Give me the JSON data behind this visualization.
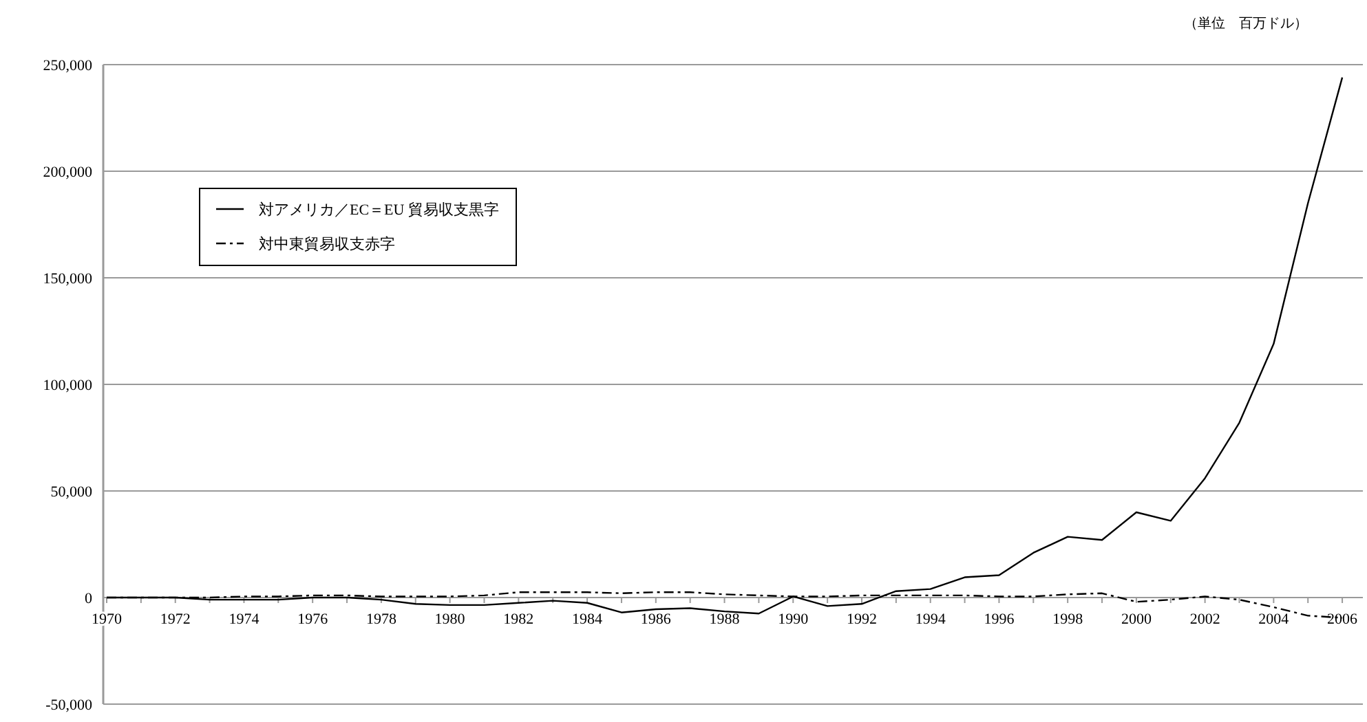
{
  "chart_data": {
    "type": "line",
    "annotations": [
      "（単位　百万ドル）"
    ],
    "x": [
      1970,
      1971,
      1972,
      1973,
      1974,
      1975,
      1976,
      1977,
      1978,
      1979,
      1980,
      1981,
      1982,
      1983,
      1984,
      1985,
      1986,
      1987,
      1988,
      1989,
      1990,
      1991,
      1992,
      1993,
      1994,
      1995,
      1996,
      1997,
      1998,
      1999,
      2000,
      2001,
      2002,
      2003,
      2004,
      2005,
      2006
    ],
    "series": [
      {
        "name": "対アメリカ／EC＝EU 貿易収支黒字",
        "color": "#000000",
        "line_style": "solid",
        "values": [
          0,
          0,
          0,
          -1000,
          -1000,
          -1000,
          0,
          0,
          -1000,
          -3000,
          -3500,
          -3500,
          -2500,
          -1500,
          -2500,
          -7000,
          -5500,
          -5000,
          -6500,
          -7500,
          500,
          -4000,
          -3000,
          3000,
          4000,
          9500,
          10500,
          21000,
          28500,
          27000,
          40000,
          36000,
          56000,
          82000,
          119000,
          185000,
          244000
        ]
      },
      {
        "name": "対中東貿易収支赤字",
        "color": "#000000",
        "line_style": "dashdot",
        "values": [
          0,
          0,
          0,
          0,
          500,
          500,
          1000,
          1000,
          500,
          500,
          500,
          1000,
          2500,
          2500,
          2500,
          2000,
          2500,
          2500,
          1500,
          1000,
          500,
          500,
          1000,
          1000,
          1000,
          1000,
          500,
          500,
          1500,
          2000,
          -2000,
          -1000,
          500,
          -1000,
          -4500,
          -8500,
          -9500
        ]
      }
    ],
    "xlim": [
      1969.9,
      2006.6
    ],
    "xticks": [
      1970,
      {
        "value": 1971,
        "label": null
      },
      1972,
      {
        "value": 1973,
        "label": null
      },
      1974,
      {
        "value": 1975,
        "label": null
      },
      1976,
      {
        "value": 1977,
        "label": null
      },
      1978,
      {
        "value": 1979,
        "label": null
      },
      1980,
      {
        "value": 1981,
        "label": null
      },
      1982,
      {
        "value": 1983,
        "label": null
      },
      1984,
      {
        "value": 1985,
        "label": null
      },
      1986,
      {
        "value": 1987,
        "label": null
      },
      1988,
      {
        "value": 1989,
        "label": null
      },
      1990,
      {
        "value": 1991,
        "label": null
      },
      1992,
      {
        "value": 1993,
        "label": null
      },
      1994,
      {
        "value": 1995,
        "label": null
      },
      1996,
      {
        "value": 1997,
        "label": null
      },
      1998,
      {
        "value": 1999,
        "label": null
      },
      2000,
      {
        "value": 2001,
        "label": null
      },
      2002,
      {
        "value": 2003,
        "label": null
      },
      2004,
      {
        "value": 2005,
        "label": null
      },
      2006
    ],
    "ylim": [
      -50000,
      250000
    ],
    "yticks": [
      {
        "value": -50000,
        "label": "-50,000"
      },
      0,
      {
        "value": 50000,
        "label": "50,000"
      },
      {
        "value": 100000,
        "label": "100,000"
      },
      {
        "value": 150000,
        "label": "150,000"
      },
      {
        "value": 200000,
        "label": "200,000"
      },
      {
        "value": 250000,
        "label": "250,000"
      }
    ],
    "grid": "y",
    "legend": "top left",
    "marker": "none"
  }
}
